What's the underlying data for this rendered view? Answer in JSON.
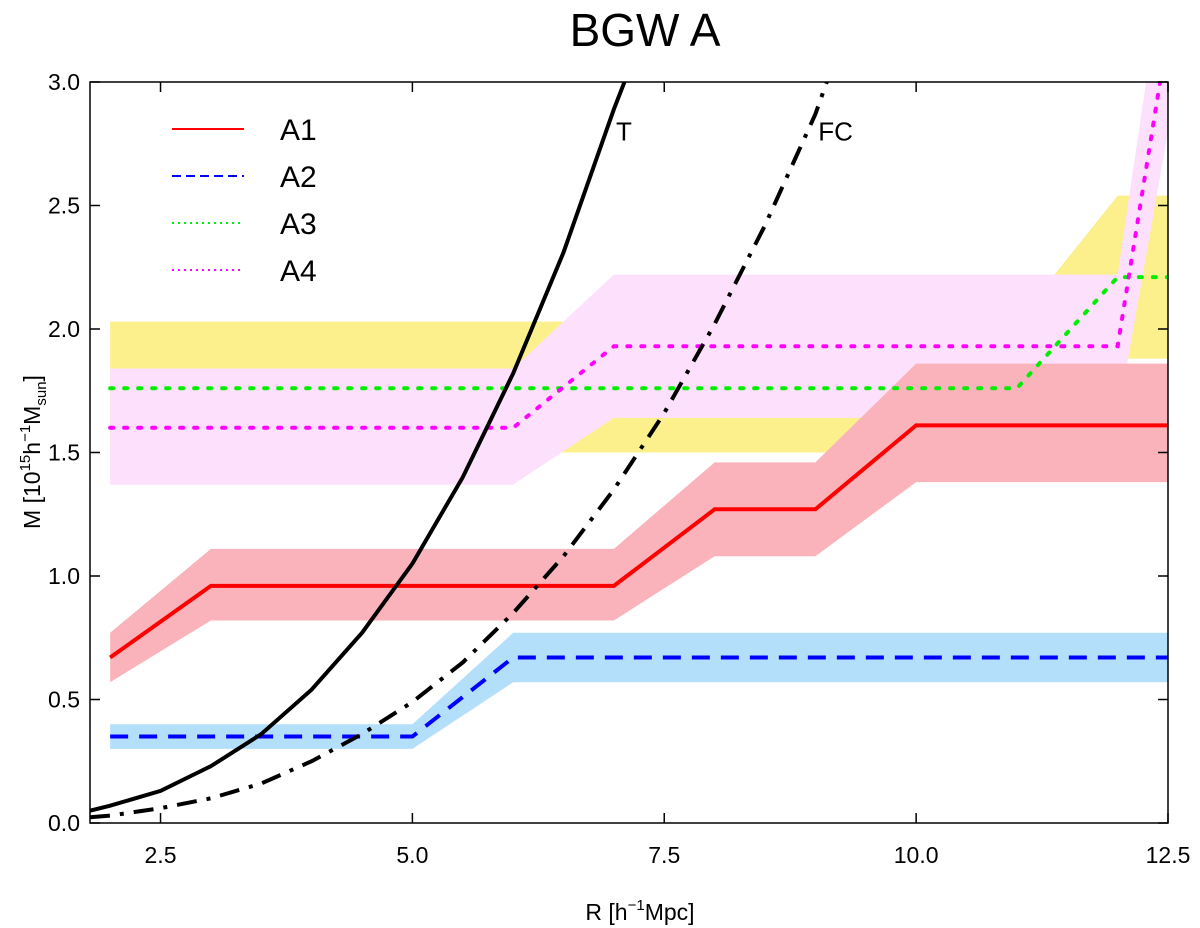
{
  "chart_data": {
    "type": "line",
    "title": "BGW A",
    "xlabel": {
      "main": "R [h",
      "sup": "−1",
      "tail": "Mpc]"
    },
    "ylabel": {
      "main": "M [10",
      "sup1": "15",
      "mid": "h",
      "sup2": "−1",
      "m": "M",
      "sub": "sun",
      "tail": "]"
    },
    "xlim": [
      1.8,
      12.5
    ],
    "ylim": [
      0,
      3.0
    ],
    "xticks": [
      2.5,
      5.0,
      7.5,
      10.0,
      12.5
    ],
    "xtick_labels": [
      "2.5",
      "5.0",
      "7.5",
      "10.0",
      "12.5"
    ],
    "yticks": [
      0,
      0.5,
      1.0,
      1.5,
      2.0,
      2.5,
      3.0
    ],
    "ytick_labels": [
      "0.0",
      "0.5",
      "1.0",
      "1.5",
      "2.0",
      "2.5",
      "3.0"
    ],
    "legend_position": "top-left",
    "series": [
      {
        "name": "A1",
        "color": "#ff0000",
        "style": "solid",
        "band_color": "#fbb3bb",
        "x": [
          2,
          3,
          4,
          5,
          6,
          7,
          8,
          9,
          10,
          11,
          12,
          12.5
        ],
        "y": [
          0.67,
          0.96,
          0.96,
          0.96,
          0.96,
          0.96,
          1.27,
          1.27,
          1.61,
          1.61,
          1.61,
          1.61
        ],
        "upper": [
          0.77,
          1.11,
          1.11,
          1.11,
          1.11,
          1.11,
          1.46,
          1.46,
          1.86,
          1.86,
          1.86,
          1.86
        ],
        "lower": [
          0.57,
          0.82,
          0.82,
          0.82,
          0.82,
          0.82,
          1.08,
          1.08,
          1.38,
          1.38,
          1.38,
          1.38
        ]
      },
      {
        "name": "A2",
        "color": "#0000ff",
        "style": "dashed",
        "band_color": "#b3dffb",
        "x": [
          2,
          3,
          4,
          5,
          6,
          7,
          8,
          9,
          10,
          11,
          12,
          12.5
        ],
        "y": [
          0.35,
          0.35,
          0.35,
          0.35,
          0.67,
          0.67,
          0.67,
          0.67,
          0.67,
          0.67,
          0.67,
          0.67
        ],
        "upper": [
          0.4,
          0.4,
          0.4,
          0.4,
          0.77,
          0.77,
          0.77,
          0.77,
          0.77,
          0.77,
          0.77,
          0.77
        ],
        "lower": [
          0.3,
          0.3,
          0.3,
          0.3,
          0.57,
          0.57,
          0.57,
          0.57,
          0.57,
          0.57,
          0.57,
          0.57
        ]
      },
      {
        "name": "A3",
        "color": "#00ee00",
        "style": "dotted",
        "band_color": "#fbf08c",
        "x": [
          2,
          3,
          4,
          5,
          6,
          7,
          8,
          9,
          10,
          11,
          12,
          12.5
        ],
        "y": [
          1.76,
          1.76,
          1.76,
          1.76,
          1.76,
          1.76,
          1.76,
          1.76,
          1.76,
          1.76,
          2.21,
          2.21
        ],
        "upper": [
          2.03,
          2.03,
          2.03,
          2.03,
          2.03,
          2.03,
          2.03,
          2.03,
          2.03,
          2.03,
          2.54,
          2.54
        ],
        "lower": [
          1.5,
          1.5,
          1.5,
          1.5,
          1.5,
          1.5,
          1.5,
          1.5,
          1.5,
          1.5,
          1.88,
          1.88
        ]
      },
      {
        "name": "A4",
        "color": "#ff00ff",
        "style": "dotted",
        "band_color": "#fde0fb",
        "x": [
          2,
          3,
          4,
          5,
          6,
          7,
          8,
          9,
          10,
          11,
          12,
          12.5
        ],
        "y": [
          1.6,
          1.6,
          1.6,
          1.6,
          1.6,
          1.93,
          1.93,
          1.93,
          1.93,
          1.93,
          1.93,
          3.2
        ],
        "upper": [
          1.84,
          1.84,
          1.84,
          1.84,
          1.84,
          2.22,
          2.22,
          2.22,
          2.22,
          2.22,
          2.22,
          3.6
        ],
        "lower": [
          1.37,
          1.37,
          1.37,
          1.37,
          1.37,
          1.64,
          1.64,
          1.64,
          1.64,
          1.64,
          1.64,
          2.8
        ]
      }
    ],
    "curves": [
      {
        "name": "T",
        "color": "#000000",
        "style": "solid",
        "x": [
          1.8,
          2,
          2.5,
          3,
          3.5,
          4,
          4.5,
          5,
          5.5,
          6,
          6.5,
          7,
          7.2
        ],
        "y": [
          0.05,
          0.07,
          0.13,
          0.23,
          0.36,
          0.54,
          0.77,
          1.05,
          1.4,
          1.82,
          2.31,
          2.89,
          3.1
        ]
      },
      {
        "name": "FC",
        "color": "#000000",
        "style": "dashdot",
        "x": [
          1.8,
          2,
          2.5,
          3,
          3.5,
          4,
          4.5,
          5,
          5.5,
          6,
          6.5,
          7,
          7.5,
          8,
          8.5,
          9,
          9.2
        ],
        "y": [
          0.023,
          0.03,
          0.06,
          0.1,
          0.16,
          0.25,
          0.36,
          0.49,
          0.65,
          0.85,
          1.08,
          1.35,
          1.66,
          2.02,
          2.42,
          2.87,
          3.1
        ]
      }
    ],
    "legend": [
      {
        "name": "A1",
        "color": "#ff0000",
        "style": "solid"
      },
      {
        "name": "A2",
        "color": "#0000ff",
        "style": "dashed"
      },
      {
        "name": "A3",
        "color": "#00ee00",
        "style": "dotted"
      },
      {
        "name": "A4",
        "color": "#ff00ff",
        "style": "dotted"
      }
    ],
    "annotations": [
      {
        "text": "T",
        "x": 7.1,
        "y": 2.8
      },
      {
        "text": "FC",
        "x": 9.2,
        "y": 2.8
      }
    ]
  }
}
